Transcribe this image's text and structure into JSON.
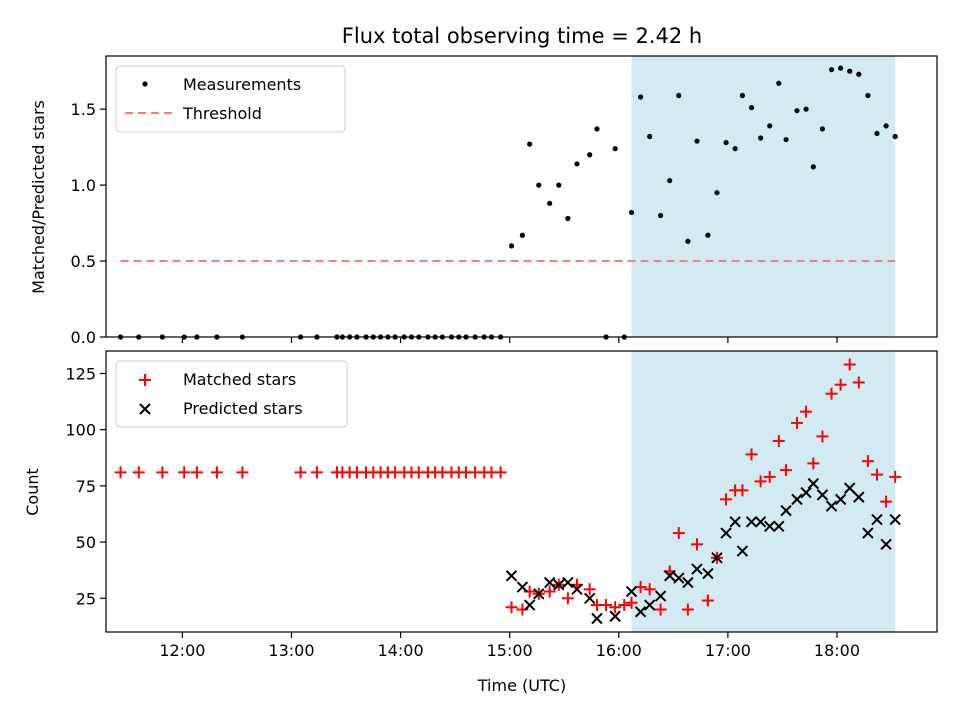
{
  "chart_data": [
    {
      "type": "scatter",
      "title": "Flux total observing time = 2.42 h",
      "ylabel": "Matched/Predicted stars",
      "xlabel": "",
      "xlim": [
        "11:18",
        "18:55"
      ],
      "ylim": [
        0,
        1.85
      ],
      "yticks": [
        "0.0",
        "0.5",
        "1.0",
        "1.5"
      ],
      "legend_position": "top-left",
      "shaded_interval": [
        "16:07",
        "18:32"
      ],
      "series": [
        {
          "name": "Measurements",
          "marker": "dot",
          "color": "#000000",
          "points": [
            [
              "11:26",
              0
            ],
            [
              "11:36",
              0
            ],
            [
              "11:49",
              0
            ],
            [
              "12:01",
              0
            ],
            [
              "12:08",
              0
            ],
            [
              "12:19",
              0
            ],
            [
              "12:33",
              0
            ],
            [
              "13:05",
              0
            ],
            [
              "13:14",
              0
            ],
            [
              "13:25",
              0
            ],
            [
              "13:28",
              0
            ],
            [
              "13:32",
              0
            ],
            [
              "13:36",
              0
            ],
            [
              "13:41",
              0
            ],
            [
              "13:45",
              0
            ],
            [
              "13:49",
              0
            ],
            [
              "13:53",
              0
            ],
            [
              "13:57",
              0
            ],
            [
              "14:02",
              0
            ],
            [
              "14:06",
              0
            ],
            [
              "14:10",
              0
            ],
            [
              "14:15",
              0
            ],
            [
              "14:19",
              0
            ],
            [
              "14:23",
              0
            ],
            [
              "14:28",
              0
            ],
            [
              "14:32",
              0
            ],
            [
              "14:36",
              0
            ],
            [
              "14:41",
              0
            ],
            [
              "14:46",
              0
            ],
            [
              "14:50",
              0
            ],
            [
              "14:55",
              0
            ],
            [
              "15:01",
              0.6
            ],
            [
              "15:07",
              0.67
            ],
            [
              "15:11",
              1.27
            ],
            [
              "15:16",
              1.0
            ],
            [
              "15:22",
              0.88
            ],
            [
              "15:27",
              1.0
            ],
            [
              "15:32",
              0.78
            ],
            [
              "15:37",
              1.14
            ],
            [
              "15:44",
              1.2
            ],
            [
              "15:48",
              1.37
            ],
            [
              "15:53",
              0
            ],
            [
              "15:58",
              1.24
            ],
            [
              "16:03",
              0
            ],
            [
              "16:07",
              0.82
            ],
            [
              "16:12",
              1.58
            ],
            [
              "16:17",
              1.32
            ],
            [
              "16:23",
              0.8
            ],
            [
              "16:28",
              1.03
            ],
            [
              "16:33",
              1.59
            ],
            [
              "16:38",
              0.63
            ],
            [
              "16:43",
              1.29
            ],
            [
              "16:49",
              0.67
            ],
            [
              "16:54",
              0.95
            ],
            [
              "16:59",
              1.28
            ],
            [
              "17:04",
              1.24
            ],
            [
              "17:08",
              1.59
            ],
            [
              "17:13",
              1.51
            ],
            [
              "17:18",
              1.31
            ],
            [
              "17:23",
              1.39
            ],
            [
              "17:28",
              1.67
            ],
            [
              "17:32",
              1.3
            ],
            [
              "17:38",
              1.49
            ],
            [
              "17:43",
              1.5
            ],
            [
              "17:47",
              1.12
            ],
            [
              "17:52",
              1.37
            ],
            [
              "17:57",
              1.76
            ],
            [
              "18:02",
              1.77
            ],
            [
              "18:07",
              1.75
            ],
            [
              "18:12",
              1.73
            ],
            [
              "18:17",
              1.59
            ],
            [
              "18:22",
              1.34
            ],
            [
              "18:27",
              1.39
            ],
            [
              "18:32",
              1.32
            ]
          ]
        },
        {
          "name": "Threshold",
          "marker": "dashed-line",
          "color": "#f08080",
          "points": [
            [
              "11:26",
              0.5
            ],
            [
              "18:32",
              0.5
            ]
          ]
        }
      ]
    },
    {
      "type": "scatter",
      "title": "",
      "ylabel": "Count",
      "xlabel": "Time (UTC)",
      "xlim": [
        "11:18",
        "18:55"
      ],
      "ylim": [
        10,
        135
      ],
      "yticks": [
        "25",
        "50",
        "75",
        "100",
        "125"
      ],
      "xticks": [
        "12:00",
        "13:00",
        "14:00",
        "15:00",
        "16:00",
        "17:00",
        "18:00"
      ],
      "legend_position": "top-left",
      "shaded_interval": [
        "16:07",
        "18:32"
      ],
      "series": [
        {
          "name": "Matched stars",
          "marker": "plus",
          "color": "#ff0000",
          "points": [
            [
              "11:26",
              81
            ],
            [
              "11:36",
              81
            ],
            [
              "11:49",
              81
            ],
            [
              "12:01",
              81
            ],
            [
              "12:08",
              81
            ],
            [
              "12:19",
              81
            ],
            [
              "12:33",
              81
            ],
            [
              "13:05",
              81
            ],
            [
              "13:14",
              81
            ],
            [
              "13:25",
              81
            ],
            [
              "13:28",
              81
            ],
            [
              "13:32",
              81
            ],
            [
              "13:36",
              81
            ],
            [
              "13:41",
              81
            ],
            [
              "13:45",
              81
            ],
            [
              "13:49",
              81
            ],
            [
              "13:53",
              81
            ],
            [
              "13:57",
              81
            ],
            [
              "14:02",
              81
            ],
            [
              "14:06",
              81
            ],
            [
              "14:10",
              81
            ],
            [
              "14:15",
              81
            ],
            [
              "14:19",
              81
            ],
            [
              "14:23",
              81
            ],
            [
              "14:28",
              81
            ],
            [
              "14:32",
              81
            ],
            [
              "14:36",
              81
            ],
            [
              "14:41",
              81
            ],
            [
              "14:46",
              81
            ],
            [
              "14:50",
              81
            ],
            [
              "14:55",
              81
            ],
            [
              "15:01",
              21
            ],
            [
              "15:07",
              20
            ],
            [
              "15:11",
              28
            ],
            [
              "15:16",
              27
            ],
            [
              "15:22",
              28
            ],
            [
              "15:27",
              31
            ],
            [
              "15:32",
              25
            ],
            [
              "15:37",
              31
            ],
            [
              "15:44",
              29
            ],
            [
              "15:48",
              22
            ],
            [
              "15:53",
              22
            ],
            [
              "15:58",
              21
            ],
            [
              "16:03",
              22
            ],
            [
              "16:07",
              23
            ],
            [
              "16:12",
              30
            ],
            [
              "16:17",
              29
            ],
            [
              "16:23",
              20
            ],
            [
              "16:28",
              37
            ],
            [
              "16:33",
              54
            ],
            [
              "16:38",
              20
            ],
            [
              "16:43",
              49
            ],
            [
              "16:49",
              24
            ],
            [
              "16:54",
              43
            ],
            [
              "16:59",
              69
            ],
            [
              "17:04",
              73
            ],
            [
              "17:08",
              73
            ],
            [
              "17:13",
              89
            ],
            [
              "17:18",
              77
            ],
            [
              "17:23",
              79
            ],
            [
              "17:28",
              95
            ],
            [
              "17:32",
              82
            ],
            [
              "17:38",
              103
            ],
            [
              "17:43",
              108
            ],
            [
              "17:47",
              85
            ],
            [
              "17:52",
              97
            ],
            [
              "17:57",
              116
            ],
            [
              "18:02",
              120
            ],
            [
              "18:07",
              129
            ],
            [
              "18:12",
              121
            ],
            [
              "18:17",
              86
            ],
            [
              "18:22",
              80
            ],
            [
              "18:27",
              68
            ],
            [
              "18:32",
              79
            ]
          ]
        },
        {
          "name": "Predicted stars",
          "marker": "x",
          "color": "#000000",
          "points": [
            [
              "15:01",
              35
            ],
            [
              "15:07",
              30
            ],
            [
              "15:11",
              22
            ],
            [
              "15:16",
              27
            ],
            [
              "15:22",
              32
            ],
            [
              "15:27",
              31
            ],
            [
              "15:32",
              32
            ],
            [
              "15:37",
              29
            ],
            [
              "15:44",
              25
            ],
            [
              "15:48",
              16
            ],
            [
              "15:58",
              17
            ],
            [
              "16:07",
              28
            ],
            [
              "16:12",
              19
            ],
            [
              "16:17",
              22
            ],
            [
              "16:23",
              26
            ],
            [
              "16:28",
              35
            ],
            [
              "16:33",
              34
            ],
            [
              "16:38",
              32
            ],
            [
              "16:43",
              38
            ],
            [
              "16:49",
              36
            ],
            [
              "16:54",
              43
            ],
            [
              "16:59",
              54
            ],
            [
              "17:04",
              59
            ],
            [
              "17:08",
              46
            ],
            [
              "17:13",
              59
            ],
            [
              "17:18",
              59
            ],
            [
              "17:23",
              57
            ],
            [
              "17:28",
              57
            ],
            [
              "17:32",
              64
            ],
            [
              "17:38",
              69
            ],
            [
              "17:43",
              72
            ],
            [
              "17:47",
              76
            ],
            [
              "17:52",
              71
            ],
            [
              "17:57",
              66
            ],
            [
              "18:02",
              69
            ],
            [
              "18:07",
              74
            ],
            [
              "18:12",
              70
            ],
            [
              "18:17",
              54
            ],
            [
              "18:22",
              60
            ],
            [
              "18:27",
              49
            ],
            [
              "18:32",
              60
            ]
          ]
        }
      ]
    }
  ]
}
